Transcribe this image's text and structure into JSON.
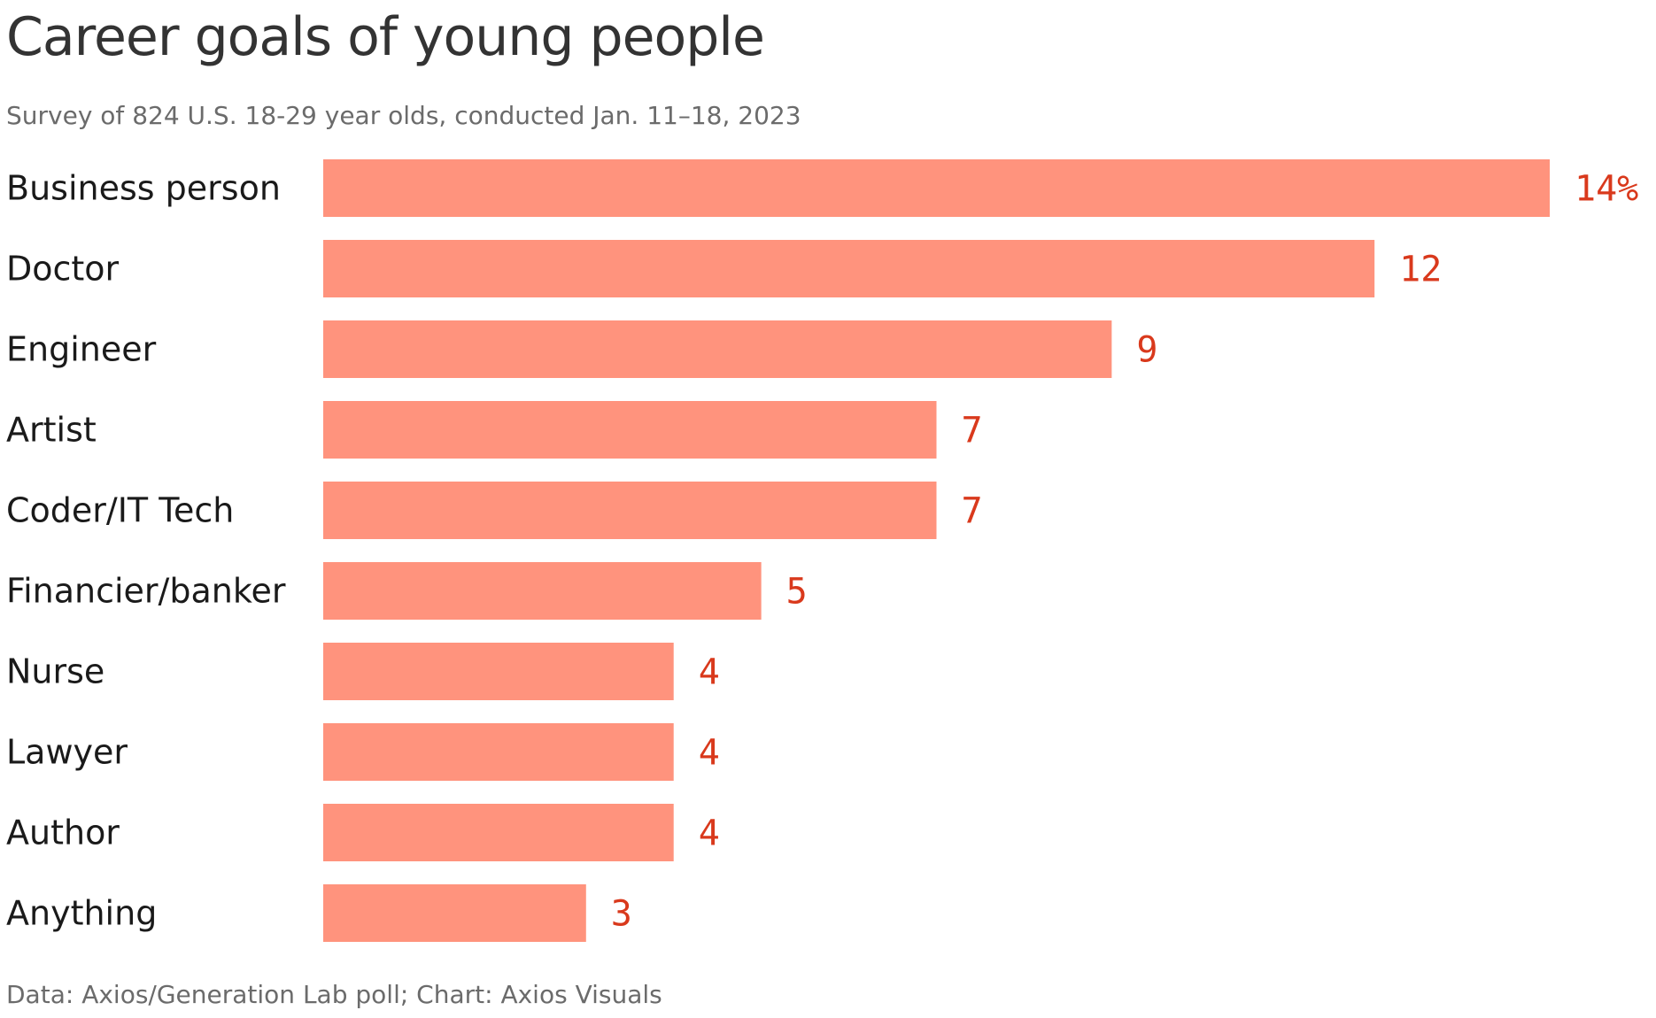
{
  "chart_data": {
    "type": "bar",
    "orientation": "horizontal",
    "title": "Career goals of young people",
    "subtitle": "Survey of 824 U.S. 18-29 year olds, conducted Jan. 11–18, 2023",
    "categories": [
      "Business person",
      "Doctor",
      "Engineer",
      "Artist",
      "Coder/IT Tech",
      "Financier/banker",
      "Nurse",
      "Lawyer",
      "Author",
      "Anything"
    ],
    "values": [
      14,
      12,
      9,
      7,
      7,
      5,
      4,
      4,
      4,
      3
    ],
    "value_labels": [
      "14%",
      "12",
      "9",
      "7",
      "7",
      "5",
      "4",
      "4",
      "4",
      "3"
    ],
    "xlim": [
      0,
      14
    ],
    "grid": false,
    "legend": "none",
    "source": "Data: Axios/Generation Lab poll; Chart: Axios Visuals",
    "colors": {
      "bar": "#ff937d",
      "value_label": "#d9391c",
      "title": "#333333",
      "subtitle": "#6b6b6b"
    }
  }
}
